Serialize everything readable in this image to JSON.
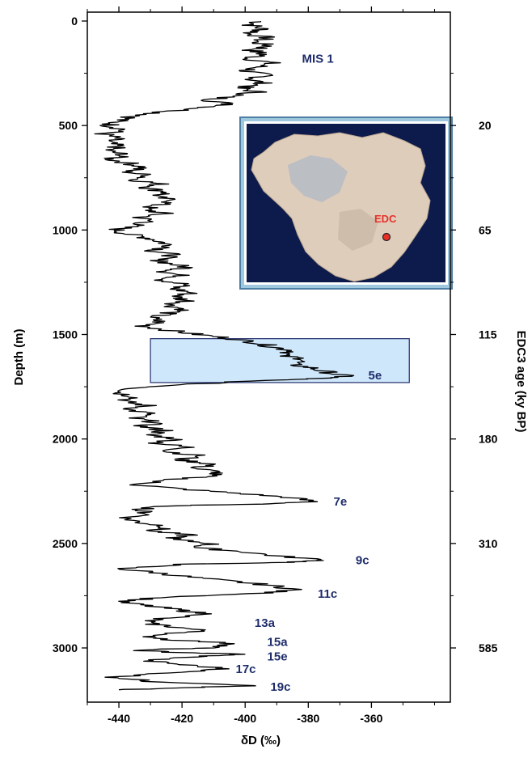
{
  "chart_data": {
    "type": "line",
    "xlabel": "δD (‰)",
    "ylabel": "Depth (m)",
    "y2label": "EDC3 age (ky BP)",
    "xlim": [
      -450,
      -335
    ],
    "ylim": [
      3250,
      0
    ],
    "x_ticks": [
      -440,
      -420,
      -400,
      -380,
      -360
    ],
    "y_ticks": [
      0,
      500,
      1000,
      1500,
      2000,
      2500,
      3000
    ],
    "y2_ticks": [
      {
        "depth": 500,
        "label": "20"
      },
      {
        "depth": 1000,
        "label": "65"
      },
      {
        "depth": 1500,
        "label": "115"
      },
      {
        "depth": 2000,
        "label": "180"
      },
      {
        "depth": 2500,
        "label": "310"
      },
      {
        "depth": 3000,
        "label": "585"
      }
    ],
    "series": [
      {
        "color": "#000000",
        "points": [
          [
            -395,
            0
          ],
          [
            -398,
            20
          ],
          [
            -394,
            40
          ],
          [
            -399,
            60
          ],
          [
            -393,
            80
          ],
          [
            -397,
            100
          ],
          [
            -392,
            120
          ],
          [
            -398,
            140
          ],
          [
            -394,
            160
          ],
          [
            -399,
            180
          ],
          [
            -392,
            200
          ],
          [
            -396,
            220
          ],
          [
            -400,
            240
          ],
          [
            -393,
            260
          ],
          [
            -398,
            280
          ],
          [
            -394,
            300
          ],
          [
            -402,
            320
          ],
          [
            -396,
            340
          ],
          [
            -405,
            360
          ],
          [
            -411,
            380
          ],
          [
            -404,
            400
          ],
          [
            -416,
            420
          ],
          [
            -428,
            440
          ],
          [
            -436,
            460
          ],
          [
            -441,
            480
          ],
          [
            -443,
            500
          ],
          [
            -438,
            520
          ],
          [
            -445,
            540
          ],
          [
            -441,
            560
          ],
          [
            -444,
            580
          ],
          [
            -440,
            600
          ],
          [
            -444,
            620
          ],
          [
            -438,
            640
          ],
          [
            -443,
            660
          ],
          [
            -437,
            680
          ],
          [
            -432,
            700
          ],
          [
            -438,
            720
          ],
          [
            -430,
            740
          ],
          [
            -435,
            760
          ],
          [
            -427,
            780
          ],
          [
            -431,
            800
          ],
          [
            -424,
            820
          ],
          [
            -429,
            840
          ],
          [
            -422,
            860
          ],
          [
            -428,
            880
          ],
          [
            -432,
            900
          ],
          [
            -426,
            920
          ],
          [
            -433,
            940
          ],
          [
            -430,
            960
          ],
          [
            -436,
            980
          ],
          [
            -441,
            1000
          ],
          [
            -437,
            1020
          ],
          [
            -430,
            1040
          ],
          [
            -426,
            1060
          ],
          [
            -423,
            1080
          ],
          [
            -429,
            1100
          ],
          [
            -422,
            1120
          ],
          [
            -428,
            1140
          ],
          [
            -424,
            1160
          ],
          [
            -418,
            1180
          ],
          [
            -425,
            1200
          ],
          [
            -420,
            1220
          ],
          [
            -426,
            1240
          ],
          [
            -419,
            1260
          ],
          [
            -423,
            1280
          ],
          [
            -417,
            1300
          ],
          [
            -422,
            1320
          ],
          [
            -418,
            1340
          ],
          [
            -424,
            1360
          ],
          [
            -419,
            1380
          ],
          [
            -425,
            1400
          ],
          [
            -430,
            1420
          ],
          [
            -427,
            1440
          ],
          [
            -432,
            1460
          ],
          [
            -424,
            1480
          ],
          [
            -415,
            1500
          ],
          [
            -404,
            1520
          ],
          [
            -396,
            1540
          ],
          [
            -391,
            1560
          ],
          [
            -384,
            1580
          ],
          [
            -389,
            1600
          ],
          [
            -380,
            1620
          ],
          [
            -386,
            1640
          ],
          [
            -379,
            1660
          ],
          [
            -374,
            1680
          ],
          [
            -368,
            1700
          ],
          [
            -376,
            1710
          ],
          [
            -395,
            1720
          ],
          [
            -420,
            1740
          ],
          [
            -436,
            1760
          ],
          [
            -440,
            1780
          ],
          [
            -434,
            1800
          ],
          [
            -439,
            1820
          ],
          [
            -431,
            1840
          ],
          [
            -437,
            1860
          ],
          [
            -430,
            1880
          ],
          [
            -436,
            1900
          ],
          [
            -428,
            1920
          ],
          [
            -433,
            1940
          ],
          [
            -425,
            1960
          ],
          [
            -431,
            1980
          ],
          [
            -421,
            2000
          ],
          [
            -428,
            2020
          ],
          [
            -418,
            2040
          ],
          [
            -425,
            2060
          ],
          [
            -414,
            2080
          ],
          [
            -421,
            2100
          ],
          [
            -410,
            2120
          ],
          [
            -416,
            2140
          ],
          [
            -408,
            2160
          ],
          [
            -413,
            2180
          ],
          [
            -427,
            2200
          ],
          [
            -434,
            2220
          ],
          [
            -420,
            2240
          ],
          [
            -402,
            2260
          ],
          [
            -386,
            2280
          ],
          [
            -378,
            2300
          ],
          [
            -392,
            2310
          ],
          [
            -425,
            2320
          ],
          [
            -434,
            2340
          ],
          [
            -430,
            2360
          ],
          [
            -438,
            2380
          ],
          [
            -433,
            2400
          ],
          [
            -424,
            2420
          ],
          [
            -430,
            2440
          ],
          [
            -418,
            2460
          ],
          [
            -424,
            2480
          ],
          [
            -410,
            2500
          ],
          [
            -416,
            2520
          ],
          [
            -400,
            2540
          ],
          [
            -390,
            2560
          ],
          [
            -374,
            2580
          ],
          [
            -386,
            2590
          ],
          [
            -420,
            2600
          ],
          [
            -440,
            2620
          ],
          [
            -428,
            2640
          ],
          [
            -418,
            2660
          ],
          [
            -405,
            2680
          ],
          [
            -392,
            2700
          ],
          [
            -384,
            2720
          ],
          [
            -396,
            2740
          ],
          [
            -428,
            2760
          ],
          [
            -440,
            2780
          ],
          [
            -430,
            2800
          ],
          [
            -420,
            2820
          ],
          [
            -411,
            2840
          ],
          [
            -428,
            2860
          ],
          [
            -432,
            2880
          ],
          [
            -422,
            2900
          ],
          [
            -412,
            2920
          ],
          [
            -432,
            2940
          ],
          [
            -424,
            2960
          ],
          [
            -402,
            2980
          ],
          [
            -412,
            3000
          ],
          [
            -436,
            3010
          ],
          [
            -424,
            3020
          ],
          [
            -401,
            3030
          ],
          [
            -414,
            3040
          ],
          [
            -432,
            3060
          ],
          [
            -420,
            3080
          ],
          [
            -405,
            3100
          ],
          [
            -425,
            3120
          ],
          [
            -441,
            3140
          ],
          [
            -430,
            3160
          ],
          [
            -395,
            3180
          ],
          [
            -420,
            3190
          ],
          [
            -440,
            3200
          ]
        ]
      }
    ],
    "highlight_box": {
      "x": [
        -430,
        -348
      ],
      "y": [
        1520,
        1730
      ],
      "color": "#cfe7fb"
    },
    "annotations": [
      {
        "text": "MIS 1",
        "x": -382,
        "y": 180
      },
      {
        "text": "5e",
        "x": -361,
        "y": 1695
      },
      {
        "text": "7e",
        "x": -372,
        "y": 2300
      },
      {
        "text": "9c",
        "x": -365,
        "y": 2580
      },
      {
        "text": "11c",
        "x": -377,
        "y": 2740
      },
      {
        "text": "13a",
        "x": -397,
        "y": 2880
      },
      {
        "text": "15a",
        "x": -393,
        "y": 2970
      },
      {
        "text": "15e",
        "x": -393,
        "y": 3040
      },
      {
        "text": "17c",
        "x": -403,
        "y": 3100
      },
      {
        "text": "19c",
        "x": -392,
        "y": 3185
      }
    ],
    "inset": {
      "site_label": "EDC",
      "background": "#0c1b4b",
      "frame": "#4f7fa3"
    }
  }
}
